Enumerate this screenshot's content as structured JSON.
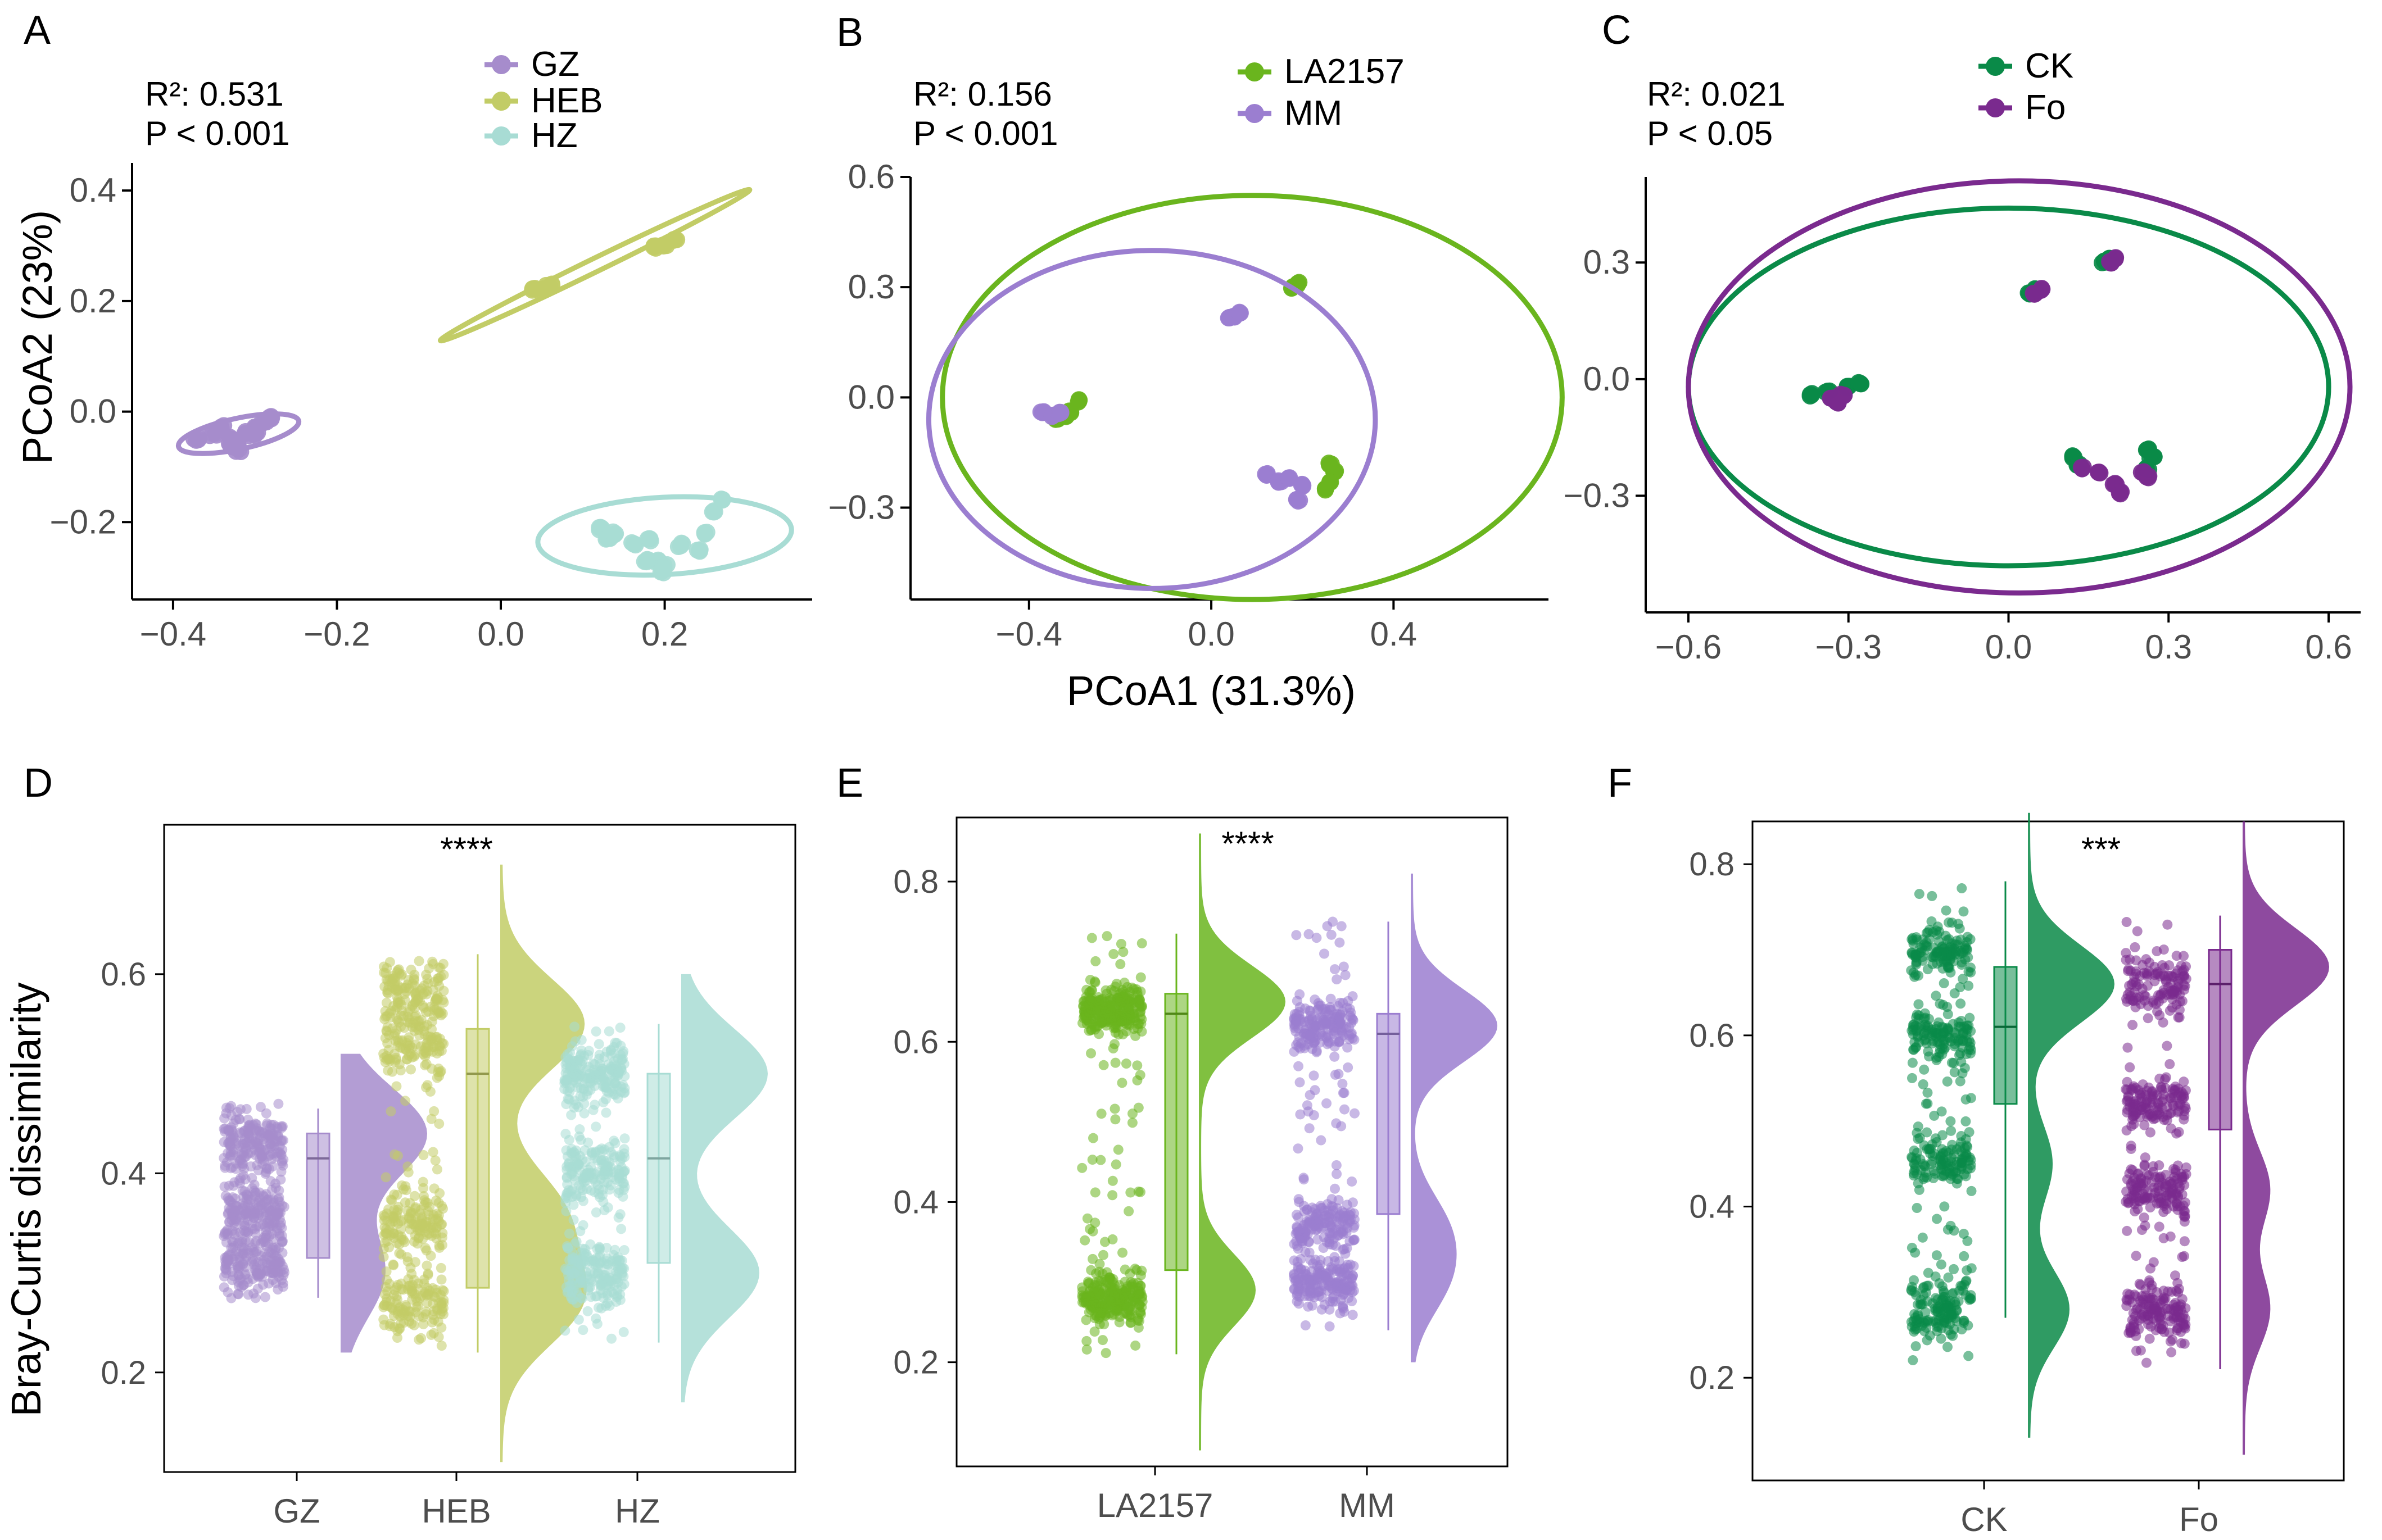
{
  "panel_letters": [
    "A",
    "B",
    "C",
    "D",
    "E",
    "F"
  ],
  "colors": {
    "GZ": "#a68ccc",
    "HEB": "#c2cc66",
    "HZ": "#a8dcd4",
    "LA2157": "#6ab51e",
    "MM": "#9b7ed0",
    "CK": "#0a8a48",
    "Fo": "#7a2a8e",
    "axis": "#000000",
    "tick_text": "#4d4d4d"
  },
  "shared_labels": {
    "pcoa_xlabel": "PCoA1 (31.3%)",
    "pcoa_ylabel": "PCoA2 (23%)",
    "box_ylabel": "Bray-Curtis dissimilarity"
  },
  "chart_data": [
    {
      "panel": "A",
      "type": "scatter",
      "title": "",
      "stat_r2": "R²: 0.531",
      "stat_p": "P < 0.001",
      "xlim": [
        -0.45,
        0.38
      ],
      "ylim": [
        -0.34,
        0.45
      ],
      "xticks": [
        -0.4,
        -0.2,
        0.0,
        0.2
      ],
      "xtick_labels": [
        "−0.4",
        "−0.2",
        "0.0",
        "0.2"
      ],
      "yticks": [
        -0.2,
        0.0,
        0.2,
        0.4
      ],
      "ytick_labels": [
        "−0.2",
        "0.0",
        "0.2",
        "0.4"
      ],
      "legend": [
        "GZ",
        "HEB",
        "HZ"
      ],
      "series": [
        {
          "name": "GZ",
          "x": [
            -0.37,
            -0.35,
            -0.34,
            -0.33,
            -0.32,
            -0.31,
            -0.3,
            -0.29,
            -0.28,
            -0.33,
            -0.32,
            -0.3
          ],
          "y": [
            -0.05,
            -0.04,
            -0.03,
            -0.05,
            -0.06,
            -0.04,
            -0.03,
            -0.02,
            -0.01,
            -0.06,
            -0.07,
            -0.04
          ],
          "ellipse": {
            "cx": -0.32,
            "cy": -0.04,
            "rx": 0.075,
            "ry": 0.028,
            "angle": 12
          }
        },
        {
          "name": "HEB",
          "x": [
            0.04,
            0.05,
            0.06,
            0.19,
            0.2,
            0.21
          ],
          "y": [
            0.22,
            0.22,
            0.23,
            0.3,
            0.3,
            0.31
          ],
          "ellipse": {
            "cx": 0.115,
            "cy": 0.265,
            "rx": 0.21,
            "ry": 0.012,
            "angle": 26
          }
        },
        {
          "name": "HZ",
          "x": [
            0.12,
            0.13,
            0.14,
            0.16,
            0.18,
            0.19,
            0.2,
            0.22,
            0.24,
            0.25,
            0.26,
            0.27,
            0.18,
            0.2
          ],
          "y": [
            -0.21,
            -0.23,
            -0.22,
            -0.24,
            -0.23,
            -0.27,
            -0.29,
            -0.24,
            -0.25,
            -0.22,
            -0.18,
            -0.16,
            -0.27,
            -0.28
          ],
          "ellipse": {
            "cx": 0.2,
            "cy": -0.225,
            "rx": 0.155,
            "ry": 0.07,
            "angle": 3
          }
        }
      ]
    },
    {
      "panel": "B",
      "type": "scatter",
      "title": "",
      "stat_r2": "R²: 0.156",
      "stat_p": "P < 0.001",
      "xlim": [
        -0.66,
        0.74
      ],
      "ylim": [
        -0.55,
        0.6
      ],
      "xticks": [
        -0.4,
        0.0,
        0.4
      ],
      "xtick_labels": [
        "−0.4",
        "0.0",
        "0.4"
      ],
      "yticks": [
        -0.3,
        0.0,
        0.3,
        0.6
      ],
      "ytick_labels": [
        "−0.3",
        "0.0",
        "0.3",
        "0.6"
      ],
      "xlabel": "PCoA1 (31.3%)",
      "legend": [
        "LA2157",
        "MM"
      ],
      "series": [
        {
          "name": "LA2157",
          "x": [
            -0.32,
            -0.31,
            -0.29,
            -0.34,
            0.18,
            0.19,
            0.26,
            0.27,
            0.26,
            0.25
          ],
          "y": [
            -0.05,
            -0.04,
            -0.01,
            -0.06,
            0.3,
            0.31,
            -0.18,
            -0.2,
            -0.23,
            -0.25
          ],
          "ellipse": {
            "cx": 0.09,
            "cy": 0.0,
            "rx": 0.68,
            "ry": 0.55,
            "angle": 0
          }
        },
        {
          "name": "MM",
          "x": [
            -0.37,
            -0.35,
            -0.33,
            0.04,
            0.05,
            0.06,
            0.12,
            0.15,
            0.17,
            0.2,
            0.19
          ],
          "y": [
            -0.04,
            -0.05,
            -0.04,
            0.22,
            0.22,
            0.23,
            -0.21,
            -0.23,
            -0.22,
            -0.24,
            -0.28
          ],
          "ellipse": {
            "cx": -0.13,
            "cy": -0.06,
            "rx": 0.49,
            "ry": 0.46,
            "angle": 0
          }
        }
      ]
    },
    {
      "panel": "C",
      "type": "scatter",
      "title": "",
      "stat_r2": "R²: 0.021",
      "stat_p": "P < 0.05",
      "xlim": [
        -0.68,
        0.66
      ],
      "ylim": [
        -0.6,
        0.52
      ],
      "xticks": [
        -0.6,
        -0.3,
        0.0,
        0.3,
        0.6
      ],
      "xtick_labels": [
        "−0.6",
        "−0.3",
        "0.0",
        "0.3",
        "0.6"
      ],
      "yticks": [
        -0.3,
        0.0,
        0.3
      ],
      "ytick_labels": [
        "−0.3",
        "0.0",
        "0.3"
      ],
      "legend": [
        "CK",
        "Fo"
      ],
      "series": [
        {
          "name": "CK",
          "x": [
            -0.37,
            -0.34,
            -0.3,
            -0.28,
            0.04,
            0.05,
            0.18,
            0.19,
            0.12,
            0.13,
            0.26,
            0.27,
            0.26
          ],
          "y": [
            -0.04,
            -0.03,
            -0.02,
            -0.01,
            0.22,
            0.23,
            0.3,
            0.31,
            -0.2,
            -0.22,
            -0.18,
            -0.2,
            -0.23
          ],
          "ellipse": {
            "cx": 0.0,
            "cy": -0.02,
            "rx": 0.6,
            "ry": 0.46,
            "angle": 0
          }
        },
        {
          "name": "Fo",
          "x": [
            -0.33,
            -0.32,
            -0.31,
            0.05,
            0.06,
            0.19,
            0.2,
            0.14,
            0.17,
            0.2,
            0.21,
            0.25,
            0.26
          ],
          "y": [
            -0.05,
            -0.06,
            -0.04,
            0.22,
            0.23,
            0.3,
            0.31,
            -0.23,
            -0.24,
            -0.27,
            -0.29,
            -0.24,
            -0.25
          ],
          "ellipse": {
            "cx": 0.02,
            "cy": -0.02,
            "rx": 0.62,
            "ry": 0.53,
            "angle": 0
          }
        }
      ]
    },
    {
      "panel": "D",
      "type": "raincloud",
      "title": "",
      "significance": "****",
      "ylabel": "Bray-Curtis dissimilarity",
      "ylim": [
        0.1,
        0.75
      ],
      "yticks": [
        0.2,
        0.4,
        0.6
      ],
      "ytick_labels": [
        "0.2",
        "0.4",
        "0.6"
      ],
      "categories": [
        "GZ",
        "HEB",
        "HZ"
      ],
      "groups": [
        {
          "name": "GZ",
          "q1": 0.315,
          "median": 0.415,
          "q3": 0.44,
          "whisker_low": 0.275,
          "whisker_high": 0.465,
          "pt_min": 0.27,
          "pt_max": 0.47,
          "modes": [
            0.31,
            0.36,
            0.43
          ],
          "violin_min": 0.22,
          "violin_max": 0.52,
          "violin_peaks": [
            [
              0.3,
              0.5
            ],
            [
              0.44,
              1.0
            ]
          ]
        },
        {
          "name": "HEB",
          "q1": 0.285,
          "median": 0.5,
          "q3": 0.545,
          "whisker_low": 0.22,
          "whisker_high": 0.62,
          "pt_min": 0.22,
          "pt_max": 0.62,
          "modes": [
            0.27,
            0.35,
            0.53,
            0.58
          ],
          "violin_min": 0.11,
          "violin_max": 0.71,
          "violin_peaks": [
            [
              0.27,
              0.45
            ],
            [
              0.36,
              0.35
            ],
            [
              0.55,
              0.5
            ]
          ]
        },
        {
          "name": "HZ",
          "q1": 0.31,
          "median": 0.415,
          "q3": 0.5,
          "whisker_low": 0.23,
          "whisker_high": 0.55,
          "pt_min": 0.23,
          "pt_max": 0.55,
          "modes": [
            0.3,
            0.4,
            0.5
          ],
          "violin_min": 0.17,
          "violin_max": 0.6,
          "violin_peaks": [
            [
              0.3,
              0.45
            ],
            [
              0.5,
              0.5
            ]
          ]
        }
      ]
    },
    {
      "panel": "E",
      "type": "raincloud",
      "title": "",
      "significance": "****",
      "ylim": [
        0.07,
        0.88
      ],
      "yticks": [
        0.2,
        0.4,
        0.6,
        0.8
      ],
      "ytick_labels": [
        "0.2",
        "0.4",
        "0.6",
        "0.8"
      ],
      "categories": [
        "LA2157",
        "MM"
      ],
      "groups": [
        {
          "name": "LA2157",
          "q1": 0.315,
          "median": 0.635,
          "q3": 0.66,
          "whisker_low": 0.21,
          "whisker_high": 0.735,
          "pt_min": 0.21,
          "pt_max": 0.74,
          "modes": [
            0.28,
            0.64
          ],
          "violin_min": 0.09,
          "violin_max": 0.86,
          "violin_peaks": [
            [
              0.29,
              0.55
            ],
            [
              0.65,
              0.85
            ]
          ]
        },
        {
          "name": "MM",
          "q1": 0.385,
          "median": 0.61,
          "q3": 0.635,
          "whisker_low": 0.24,
          "whisker_high": 0.75,
          "pt_min": 0.24,
          "pt_max": 0.75,
          "modes": [
            0.3,
            0.37,
            0.62
          ],
          "violin_min": 0.2,
          "violin_max": 0.81,
          "violin_peaks": [
            [
              0.3,
              0.35
            ],
            [
              0.37,
              0.35
            ],
            [
              0.62,
              1.0
            ]
          ]
        }
      ]
    },
    {
      "panel": "F",
      "type": "raincloud",
      "title": "",
      "significance": "***",
      "ylim": [
        0.08,
        0.85
      ],
      "yticks": [
        0.2,
        0.4,
        0.6,
        0.8
      ],
      "ytick_labels": [
        "0.2",
        "0.4",
        "0.6",
        "0.8"
      ],
      "categories": [
        "CK",
        "Fo"
      ],
      "groups": [
        {
          "name": "CK",
          "q1": 0.52,
          "median": 0.61,
          "q3": 0.68,
          "whisker_low": 0.27,
          "whisker_high": 0.78,
          "pt_min": 0.22,
          "pt_max": 0.78,
          "modes": [
            0.28,
            0.45,
            0.6,
            0.7
          ],
          "violin_min": 0.13,
          "violin_max": 0.86,
          "violin_peaks": [
            [
              0.28,
              0.35
            ],
            [
              0.45,
              0.2
            ],
            [
              0.66,
              0.75
            ]
          ]
        },
        {
          "name": "Fo",
          "q1": 0.49,
          "median": 0.66,
          "q3": 0.7,
          "whisker_low": 0.21,
          "whisker_high": 0.74,
          "pt_min": 0.21,
          "pt_max": 0.74,
          "modes": [
            0.28,
            0.42,
            0.52,
            0.66
          ],
          "violin_min": 0.11,
          "violin_max": 0.85,
          "violin_peaks": [
            [
              0.28,
              0.3
            ],
            [
              0.42,
              0.3
            ],
            [
              0.68,
              1.0
            ]
          ]
        }
      ]
    }
  ]
}
